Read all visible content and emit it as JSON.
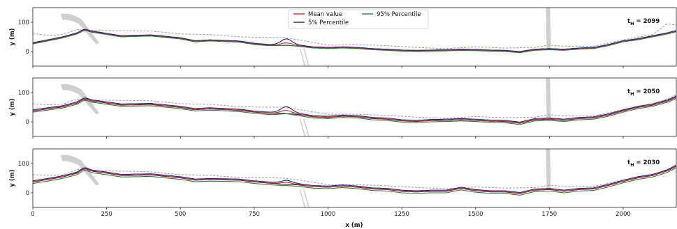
{
  "figure": {
    "xlabel": "x (m)",
    "ylabel": "y (m)"
  },
  "legend": {
    "placement": "top-center of first panel",
    "entries": [
      {
        "name": "Mean value",
        "color": "#d62728"
      },
      {
        "name": "5% Percentile",
        "color": "#1f1f8f"
      },
      {
        "name": "95% Percentile",
        "color": "#2e7d32"
      }
    ]
  },
  "colors": {
    "mean": "#d62728",
    "p5": "#1f1f8f",
    "p95": "#2e7d32",
    "black": "#111111",
    "grey_dashed": "#9a9a9a",
    "structure": "#cfcfcf"
  },
  "chart_data": [
    {
      "type": "line",
      "label": "t",
      "label_sub": "H",
      "label_value": " = 2099",
      "xlim": [
        0,
        2180
      ],
      "ylim": [
        -50,
        150
      ],
      "xticks": [
        0,
        250,
        500,
        750,
        1000,
        1250,
        1500,
        1750,
        2000
      ],
      "yticks": [
        0,
        100
      ],
      "baseline": {
        "x": [
          0,
          50,
          100,
          150,
          175,
          200,
          250,
          300,
          400,
          500,
          550,
          600,
          700,
          750,
          800,
          850,
          900,
          950,
          1000,
          1050,
          1100,
          1150,
          1200,
          1250,
          1300,
          1350,
          1400,
          1450,
          1500,
          1550,
          1600,
          1650,
          1700,
          1750,
          1800,
          1850,
          1900,
          1950,
          2000,
          2050,
          2100,
          2150,
          2180
        ],
        "y": [
          28,
          38,
          48,
          62,
          75,
          68,
          60,
          52,
          55,
          45,
          35,
          38,
          34,
          26,
          22,
          22,
          20,
          14,
          12,
          14,
          12,
          8,
          6,
          3,
          2,
          3,
          4,
          6,
          5,
          3,
          2,
          -2,
          6,
          8,
          6,
          10,
          12,
          22,
          35,
          42,
          52,
          62,
          70
        ]
      },
      "series": [
        {
          "name": "Mean value",
          "offset": 0,
          "bump": {
            "x": 860,
            "h": 8
          }
        },
        {
          "name": "5% Percentile",
          "offset": 2,
          "bump": {
            "x": 860,
            "h": 20
          }
        },
        {
          "name": "95% Percentile",
          "offset": -2,
          "bump": {
            "x": 860,
            "h": 2
          }
        }
      ],
      "dashed": {
        "x": [
          0,
          50,
          100,
          150,
          200,
          250,
          400,
          500,
          600,
          700,
          800,
          850,
          900,
          1000,
          1100,
          1200,
          1300,
          1400,
          1500,
          1600,
          1700,
          1750,
          1800,
          1900,
          2000,
          2100,
          2150,
          2180
        ],
        "y": [
          62,
          55,
          58,
          75,
          72,
          72,
          70,
          60,
          58,
          50,
          48,
          48,
          40,
          22,
          24,
          20,
          14,
          10,
          16,
          12,
          14,
          22,
          18,
          18,
          40,
          58,
          95,
          90
        ]
      }
    },
    {
      "type": "line",
      "label": "t",
      "label_sub": "H",
      "label_value": " = 2050",
      "xlim": [
        0,
        2180
      ],
      "ylim": [
        -50,
        150
      ],
      "xticks": [
        0,
        250,
        500,
        750,
        1000,
        1250,
        1500,
        1750,
        2000
      ],
      "yticks": [
        0,
        100
      ],
      "baseline": {
        "x": [
          0,
          50,
          100,
          150,
          175,
          200,
          250,
          300,
          400,
          500,
          550,
          600,
          700,
          750,
          800,
          850,
          900,
          950,
          1000,
          1050,
          1100,
          1150,
          1200,
          1250,
          1300,
          1350,
          1400,
          1450,
          1500,
          1550,
          1600,
          1650,
          1700,
          1750,
          1800,
          1850,
          1900,
          1950,
          2000,
          2050,
          2100,
          2150,
          2180
        ],
        "y": [
          38,
          45,
          52,
          65,
          80,
          72,
          65,
          58,
          60,
          50,
          42,
          45,
          40,
          34,
          30,
          30,
          26,
          18,
          16,
          20,
          18,
          12,
          10,
          4,
          2,
          5,
          6,
          8,
          6,
          3,
          2,
          -4,
          8,
          10,
          6,
          12,
          14,
          24,
          38,
          50,
          58,
          72,
          85
        ]
      },
      "series": [
        {
          "name": "Mean value",
          "offset": 0,
          "bump": {
            "x": 860,
            "h": 10
          }
        },
        {
          "name": "5% Percentile",
          "offset": 3,
          "bump": {
            "x": 860,
            "h": 20
          }
        },
        {
          "name": "95% Percentile",
          "offset": -5,
          "bump": {
            "x": 860,
            "h": 3
          }
        }
      ],
      "dashed": {
        "x": [
          0,
          50,
          100,
          150,
          200,
          250,
          400,
          500,
          600,
          700,
          800,
          850,
          900,
          1000,
          1100,
          1200,
          1300,
          1400,
          1500,
          1600,
          1700,
          1750,
          1800,
          1900,
          2000,
          2100,
          2150,
          2180
        ],
        "y": [
          62,
          58,
          60,
          78,
          74,
          74,
          72,
          62,
          60,
          52,
          50,
          50,
          42,
          26,
          26,
          22,
          16,
          12,
          18,
          14,
          16,
          24,
          20,
          20,
          42,
          62,
          78,
          92
        ]
      }
    },
    {
      "type": "line",
      "label": "t",
      "label_sub": "H",
      "label_value": " = 2030",
      "xlim": [
        0,
        2180
      ],
      "ylim": [
        -50,
        150
      ],
      "xticks": [
        0,
        250,
        500,
        750,
        1000,
        1250,
        1500,
        1750,
        2000
      ],
      "yticks": [
        0,
        100
      ],
      "baseline": {
        "x": [
          0,
          50,
          100,
          150,
          175,
          200,
          250,
          300,
          400,
          500,
          550,
          600,
          700,
          750,
          800,
          850,
          900,
          950,
          1000,
          1050,
          1100,
          1150,
          1200,
          1250,
          1300,
          1350,
          1400,
          1450,
          1500,
          1550,
          1600,
          1650,
          1700,
          1750,
          1800,
          1850,
          1900,
          1950,
          2000,
          2050,
          2100,
          2150,
          2180
        ],
        "y": [
          38,
          46,
          55,
          68,
          85,
          75,
          68,
          60,
          62,
          52,
          44,
          46,
          44,
          38,
          34,
          30,
          28,
          22,
          20,
          24,
          20,
          14,
          12,
          6,
          4,
          6,
          6,
          16,
          8,
          4,
          4,
          -2,
          10,
          12,
          6,
          12,
          14,
          26,
          40,
          52,
          60,
          76,
          92
        ]
      },
      "series": [
        {
          "name": "Mean value",
          "offset": 0,
          "bump": {
            "x": 860,
            "h": 6
          }
        },
        {
          "name": "5% Percentile",
          "offset": 3,
          "bump": {
            "x": 860,
            "h": 10
          }
        },
        {
          "name": "95% Percentile",
          "offset": -6,
          "bump": {
            "x": 860,
            "h": 1
          }
        }
      ],
      "dashed": {
        "x": [
          0,
          50,
          100,
          150,
          200,
          250,
          400,
          500,
          600,
          700,
          800,
          850,
          900,
          1000,
          1100,
          1200,
          1300,
          1400,
          1500,
          1600,
          1700,
          1750,
          1800,
          1900,
          2000,
          2100,
          2150,
          2180
        ],
        "y": [
          62,
          60,
          60,
          80,
          75,
          75,
          72,
          62,
          60,
          52,
          52,
          50,
          44,
          28,
          28,
          24,
          18,
          14,
          20,
          16,
          18,
          26,
          22,
          22,
          44,
          62,
          80,
          95
        ]
      }
    }
  ]
}
